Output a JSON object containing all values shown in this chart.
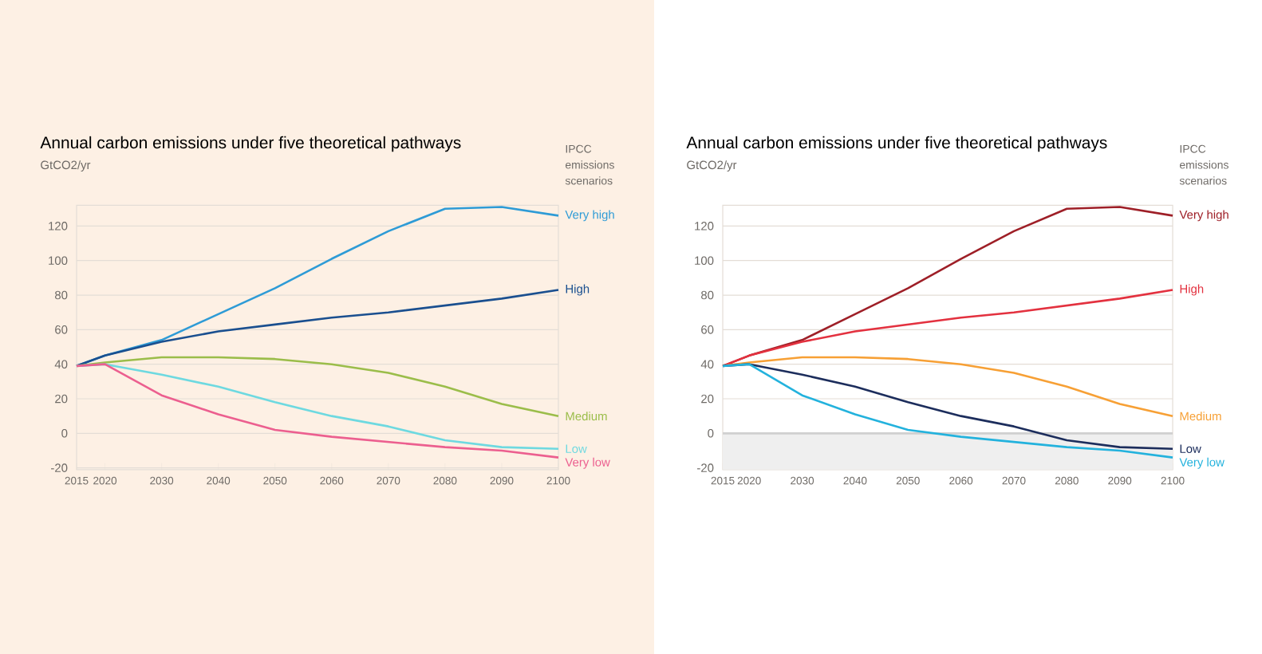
{
  "chart_data": [
    {
      "type": "line",
      "title": "Annual carbon emissions under five theoretical pathways",
      "ylabel": "GtCO2/yr",
      "legend_title": "IPCC emissions scenarios",
      "x": [
        2015,
        2020,
        2030,
        2040,
        2050,
        2060,
        2070,
        2080,
        2090,
        2100
      ],
      "series": [
        {
          "name": "Very high",
          "color": "#2e9bd6",
          "values": [
            39,
            45,
            54,
            69,
            84,
            101,
            117,
            130,
            131,
            126
          ]
        },
        {
          "name": "High",
          "color": "#1a4f8f",
          "values": [
            39,
            45,
            53,
            59,
            63,
            67,
            70,
            74,
            78,
            83
          ]
        },
        {
          "name": "Medium",
          "color": "#9bbd4a",
          "values": [
            39,
            41,
            44,
            44,
            43,
            40,
            35,
            27,
            17,
            10
          ]
        },
        {
          "name": "Low",
          "color": "#6ed9e0",
          "values": [
            39,
            40,
            34,
            27,
            18,
            10,
            4,
            -4,
            -8,
            -9
          ]
        },
        {
          "name": "Very low",
          "color": "#ec5f8f",
          "values": [
            39,
            40,
            22,
            11,
            2,
            -2,
            -5,
            -8,
            -10,
            -14
          ]
        }
      ],
      "xlim": [
        2015,
        2100
      ],
      "ylim": [
        -21,
        132
      ],
      "xticks": [
        2015,
        2020,
        2030,
        2040,
        2050,
        2060,
        2070,
        2080,
        2090,
        2100
      ],
      "yticks": [
        -20,
        0,
        20,
        40,
        60,
        80,
        100,
        120
      ],
      "grid": "y"
    },
    {
      "type": "line",
      "title": "Annual carbon emissions under five theoretical pathways",
      "ylabel": "GtCO2/yr",
      "legend_title": "IPCC emissions scenarios",
      "x": [
        2015,
        2020,
        2030,
        2040,
        2050,
        2060,
        2070,
        2080,
        2090,
        2100
      ],
      "series": [
        {
          "name": "Very high",
          "color": "#9e1f27",
          "values": [
            39,
            45,
            54,
            69,
            84,
            101,
            117,
            130,
            131,
            126
          ]
        },
        {
          "name": "High",
          "color": "#e3313f",
          "values": [
            39,
            45,
            53,
            59,
            63,
            67,
            70,
            74,
            78,
            83
          ]
        },
        {
          "name": "Medium",
          "color": "#f7a035",
          "values": [
            39,
            41,
            44,
            44,
            43,
            40,
            35,
            27,
            17,
            10
          ]
        },
        {
          "name": "Low",
          "color": "#1c2d5c",
          "values": [
            39,
            40,
            34,
            27,
            18,
            10,
            4,
            -4,
            -8,
            -9
          ]
        },
        {
          "name": "Very low",
          "color": "#23b2dd",
          "values": [
            39,
            40,
            22,
            11,
            2,
            -2,
            -5,
            -8,
            -10,
            -14
          ]
        }
      ],
      "xlim": [
        2015,
        2100
      ],
      "ylim": [
        -21,
        132
      ],
      "xticks": [
        2015,
        2020,
        2030,
        2040,
        2050,
        2060,
        2070,
        2080,
        2090,
        2100
      ],
      "yticks": [
        -20,
        0,
        20,
        40,
        60,
        80,
        100,
        120
      ],
      "grid": "y",
      "bands": [
        {
          "axis": "y",
          "from": -21,
          "to": 0,
          "color": "#efefef"
        }
      ]
    }
  ]
}
